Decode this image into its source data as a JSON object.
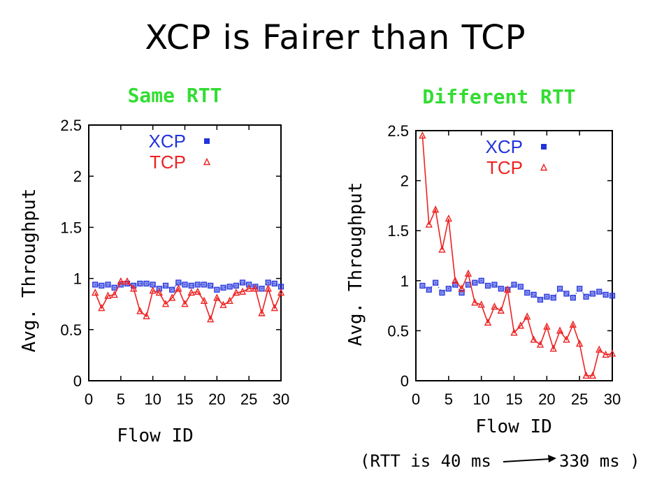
{
  "title": "XCP is Fairer than TCP",
  "colors": {
    "subtitle": "#33dd33",
    "xcp": "#2233dd",
    "tcp": "#ee2222"
  },
  "note": {
    "prefix": "(RTT is 40 ms",
    "suffix": "330 ms )"
  },
  "chart_data": [
    {
      "type": "scatter",
      "title": "Same RTT",
      "xlabel": "Flow ID",
      "ylabel": "Avg. Throughput",
      "xlim": [
        0,
        30
      ],
      "ylim": [
        0,
        2.5
      ],
      "xticks": [
        "0",
        "5",
        "10",
        "15",
        "20",
        "25",
        "30"
      ],
      "yticks": [
        "0",
        "0.5",
        "1",
        "1.5",
        "2",
        "2.5"
      ],
      "legend_position": "top-right",
      "series": [
        {
          "name": "XCP",
          "marker": "square",
          "line": "dotted",
          "x": [
            1,
            2,
            3,
            4,
            5,
            6,
            7,
            8,
            9,
            10,
            11,
            12,
            13,
            14,
            15,
            16,
            17,
            18,
            19,
            20,
            21,
            22,
            23,
            24,
            25,
            26,
            27,
            28,
            29,
            30
          ],
          "values": [
            0.94,
            0.93,
            0.94,
            0.91,
            0.94,
            0.95,
            0.93,
            0.95,
            0.95,
            0.94,
            0.9,
            0.93,
            0.89,
            0.96,
            0.94,
            0.93,
            0.94,
            0.94,
            0.93,
            0.89,
            0.91,
            0.92,
            0.93,
            0.96,
            0.94,
            0.92,
            0.9,
            0.96,
            0.95,
            0.92
          ]
        },
        {
          "name": "TCP",
          "marker": "triangle",
          "line": "solid",
          "x": [
            1,
            2,
            3,
            4,
            5,
            6,
            7,
            8,
            9,
            10,
            11,
            12,
            13,
            14,
            15,
            16,
            17,
            18,
            19,
            20,
            21,
            22,
            23,
            24,
            25,
            26,
            27,
            28,
            29,
            30
          ],
          "values": [
            0.86,
            0.71,
            0.83,
            0.84,
            0.97,
            0.97,
            0.9,
            0.68,
            0.63,
            0.88,
            0.86,
            0.75,
            0.81,
            0.9,
            0.75,
            0.86,
            0.87,
            0.78,
            0.6,
            0.81,
            0.74,
            0.78,
            0.86,
            0.87,
            0.9,
            0.9,
            0.66,
            0.9,
            0.71,
            0.86
          ]
        }
      ]
    },
    {
      "type": "scatter",
      "title": "Different RTT",
      "xlabel": "Flow ID",
      "ylabel": "Avg. Throughput",
      "xlim": [
        0,
        30
      ],
      "ylim": [
        0,
        2.5
      ],
      "xticks": [
        "0",
        "5",
        "10",
        "15",
        "20",
        "25",
        "30"
      ],
      "yticks": [
        "0",
        "0.5",
        "1",
        "1.5",
        "2",
        "2.5"
      ],
      "legend_position": "top-right",
      "series": [
        {
          "name": "XCP",
          "marker": "square",
          "line": "dotted",
          "x": [
            1,
            2,
            3,
            4,
            5,
            6,
            7,
            8,
            9,
            10,
            11,
            12,
            13,
            14,
            15,
            16,
            17,
            18,
            19,
            20,
            21,
            22,
            23,
            24,
            25,
            26,
            27,
            28,
            29,
            30
          ],
          "values": [
            0.95,
            0.91,
            0.98,
            0.88,
            0.92,
            0.96,
            0.88,
            0.96,
            0.98,
            1.0,
            0.95,
            0.96,
            0.92,
            0.91,
            0.96,
            0.94,
            0.88,
            0.86,
            0.81,
            0.84,
            0.83,
            0.92,
            0.87,
            0.83,
            0.92,
            0.84,
            0.87,
            0.89,
            0.86,
            0.85
          ]
        },
        {
          "name": "TCP",
          "marker": "triangle",
          "line": "solid",
          "x": [
            1,
            2,
            3,
            4,
            5,
            6,
            7,
            8,
            9,
            10,
            11,
            12,
            13,
            14,
            15,
            16,
            17,
            18,
            19,
            20,
            21,
            22,
            23,
            24,
            25,
            26,
            27,
            28,
            29,
            30
          ],
          "values": [
            2.45,
            1.56,
            1.71,
            1.31,
            1.62,
            1.0,
            0.92,
            1.07,
            0.78,
            0.76,
            0.58,
            0.74,
            0.7,
            0.91,
            0.48,
            0.55,
            0.64,
            0.41,
            0.36,
            0.54,
            0.32,
            0.5,
            0.41,
            0.56,
            0.37,
            0.05,
            0.05,
            0.31,
            0.26,
            0.27
          ]
        }
      ]
    }
  ]
}
